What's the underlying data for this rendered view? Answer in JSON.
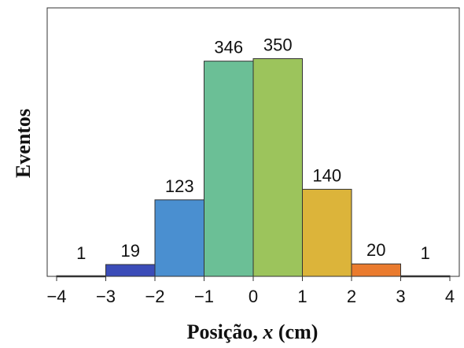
{
  "chart_data": {
    "type": "bar",
    "xlabel": "Posição, x (cm)",
    "xlabel_parts": {
      "before": "Posição, ",
      "var": "x",
      "after": " (cm)"
    },
    "ylabel": "Eventos",
    "xlim": [
      -4,
      4
    ],
    "ylim": [
      0,
      400
    ],
    "x_ticks": [
      "−4",
      "−3",
      "−2",
      "−1",
      "0",
      "1",
      "2",
      "3",
      "4"
    ],
    "grid": false,
    "bins": [
      {
        "from": -4,
        "to": -3,
        "value": 1,
        "label": "1",
        "color": "#2b2b7a"
      },
      {
        "from": -3,
        "to": -2,
        "value": 19,
        "label": "19",
        "color": "#3b4cb8"
      },
      {
        "from": -2,
        "to": -1,
        "value": 123,
        "label": "123",
        "color": "#4a8fd0"
      },
      {
        "from": -1,
        "to": 0,
        "value": 346,
        "label": "346",
        "color": "#6bbf96"
      },
      {
        "from": 0,
        "to": 1,
        "value": 350,
        "label": "350",
        "color": "#9cc45c"
      },
      {
        "from": 1,
        "to": 2,
        "value": 140,
        "label": "140",
        "color": "#dcb43a"
      },
      {
        "from": 2,
        "to": 3,
        "value": 20,
        "label": "20",
        "color": "#ea7b2e"
      },
      {
        "from": 3,
        "to": 4,
        "value": 1,
        "label": "1",
        "color": "#b03a4a"
      }
    ]
  }
}
